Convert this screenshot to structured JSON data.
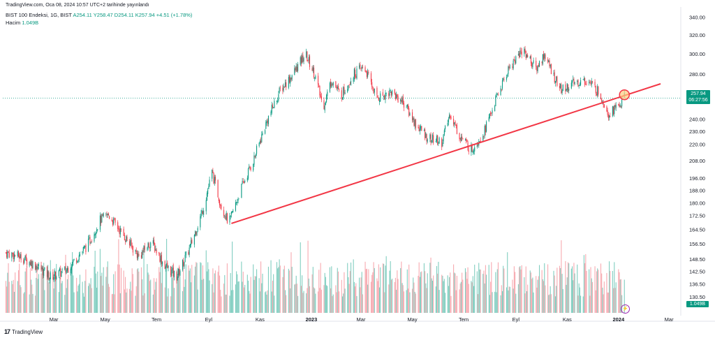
{
  "header": {
    "publish_line": "TradingView.com, Oca 08, 2024 10:57 UTC+2 tarihinde yayınlandı"
  },
  "legend": {
    "symbol": "BIST 100 Endeksi, 1G, BIST",
    "ohlc": "A254.11  Y258.47  D254.11  K257.94  +4.51  (+1.78%)",
    "volume_label": "Hacim",
    "volume_value": "1.049B"
  },
  "price_badge": {
    "price": "257.94",
    "countdown": "06:27:56"
  },
  "volume_badge": "1.049B",
  "footer": {
    "logo": "17",
    "brand": "TradingView"
  },
  "colors": {
    "up": "#089981",
    "down": "#f23645",
    "trendline": "#f23645",
    "volume_up": "#7fcdbf",
    "volume_down": "#f7a8af"
  },
  "chart_data": {
    "type": "candlestick",
    "y_scale": "log",
    "y_ticks": [
      340,
      320,
      300,
      280,
      260,
      240,
      230,
      220,
      208,
      196,
      188,
      180,
      172.5,
      164.5,
      156.5,
      148.5,
      142.5,
      136.5,
      130.5
    ],
    "x_ticks": [
      "Mar",
      "May",
      "Tem",
      "Eyl",
      "Kas",
      "2023",
      "Mar",
      "May",
      "Tem",
      "Eyl",
      "Kas",
      "2024",
      "Mar"
    ],
    "close_path": [
      [
        "2022-01-03",
        152
      ],
      [
        "2022-01-20",
        150
      ],
      [
        "2022-02-10",
        145
      ],
      [
        "2022-02-25",
        140
      ],
      [
        "2022-03-15",
        143
      ],
      [
        "2022-04-10",
        156
      ],
      [
        "2022-04-25",
        170
      ],
      [
        "2022-05-05",
        173
      ],
      [
        "2022-05-25",
        160
      ],
      [
        "2022-06-10",
        150
      ],
      [
        "2022-06-25",
        158
      ],
      [
        "2022-07-10",
        146
      ],
      [
        "2022-07-25",
        140
      ],
      [
        "2022-08-10",
        155
      ],
      [
        "2022-08-25",
        176
      ],
      [
        "2022-09-05",
        200
      ],
      [
        "2022-09-15",
        180
      ],
      [
        "2022-09-25",
        168
      ],
      [
        "2022-10-10",
        190
      ],
      [
        "2022-10-25",
        210
      ],
      [
        "2022-11-10",
        240
      ],
      [
        "2022-11-25",
        265
      ],
      [
        "2022-12-10",
        280
      ],
      [
        "2022-12-25",
        300
      ],
      [
        "2023-01-05",
        280
      ],
      [
        "2023-01-15",
        250
      ],
      [
        "2023-01-25",
        275
      ],
      [
        "2023-02-05",
        260
      ],
      [
        "2023-02-20",
        280
      ],
      [
        "2023-03-05",
        287
      ],
      [
        "2023-03-20",
        258
      ],
      [
        "2023-04-05",
        264
      ],
      [
        "2023-04-20",
        255
      ],
      [
        "2023-05-05",
        236
      ],
      [
        "2023-05-20",
        225
      ],
      [
        "2023-06-05",
        222
      ],
      [
        "2023-06-15",
        245
      ],
      [
        "2023-06-25",
        228
      ],
      [
        "2023-07-10",
        216
      ],
      [
        "2023-07-25",
        230
      ],
      [
        "2023-08-10",
        260
      ],
      [
        "2023-08-25",
        288
      ],
      [
        "2023-09-10",
        305
      ],
      [
        "2023-09-25",
        285
      ],
      [
        "2023-10-05",
        300
      ],
      [
        "2023-10-15",
        280
      ],
      [
        "2023-10-25",
        265
      ],
      [
        "2023-11-10",
        272
      ],
      [
        "2023-11-25",
        274
      ],
      [
        "2023-12-10",
        262
      ],
      [
        "2023-12-20",
        245
      ],
      [
        "2024-01-02",
        252
      ],
      [
        "2024-01-08",
        257.94
      ]
    ],
    "trendline": {
      "from": [
        "2022-09-28",
        168
      ],
      "to": [
        "2024-02-20",
        271
      ]
    },
    "highlight_point": [
      "2024-01-08",
      261
    ],
    "last_close": 257.94,
    "last_volume": "1.049B"
  }
}
